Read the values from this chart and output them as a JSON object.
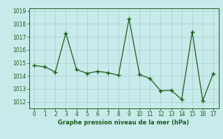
{
  "x": [
    0,
    1,
    2,
    3,
    4,
    5,
    6,
    7,
    8,
    9,
    10,
    11,
    12,
    13,
    14,
    15,
    16,
    17
  ],
  "y": [
    1014.8,
    1014.7,
    1014.3,
    1017.3,
    1014.5,
    1014.2,
    1014.35,
    1014.25,
    1014.05,
    1018.4,
    1014.1,
    1013.8,
    1012.85,
    1012.9,
    1012.2,
    1017.4,
    1012.1,
    1014.2
  ],
  "line_color": "#1a5c1a",
  "marker_color": "#1a5c1a",
  "bg_color": "#c8eaea",
  "grid_color": "#aacccc",
  "xlabel": "Graphe pression niveau de la mer (hPa)",
  "xlabel_color": "#1a5c1a",
  "tick_color": "#1a5c1a",
  "spine_color": "#1a5c1a",
  "ylim": [
    1011.5,
    1019.2
  ],
  "xlim": [
    -0.5,
    17.5
  ],
  "yticks": [
    1012,
    1013,
    1014,
    1015,
    1016,
    1017,
    1018,
    1019
  ],
  "xticks": [
    0,
    1,
    2,
    3,
    4,
    5,
    6,
    7,
    8,
    9,
    10,
    11,
    12,
    13,
    14,
    15,
    16,
    17
  ]
}
